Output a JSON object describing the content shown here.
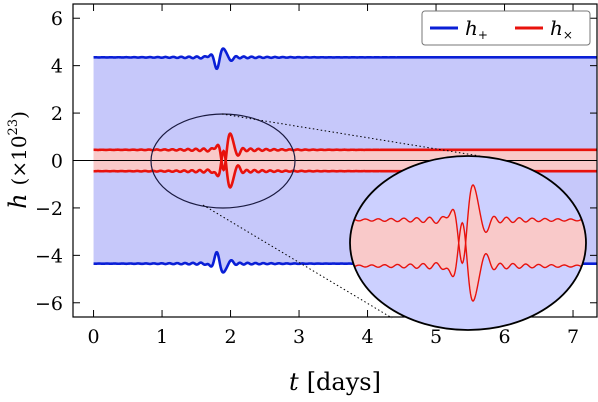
{
  "chart_data": {
    "type": "line",
    "title": "",
    "xlabel": {
      "symbol": "t",
      "unit": "[days]"
    },
    "ylabel": {
      "symbol": "h",
      "scale": "(×10",
      "exp": "23",
      "close": ")"
    },
    "xlim": [
      -0.3,
      7.35
    ],
    "ylim": [
      -6.6,
      6.6
    ],
    "x_ticks": [
      0,
      1,
      2,
      3,
      4,
      5,
      6,
      7
    ],
    "y_ticks": [
      -6,
      -4,
      -2,
      0,
      2,
      4,
      6
    ],
    "grid": false,
    "legend_position": "top-right",
    "colors": {
      "h_plus": "#0a1fd6",
      "h_cross": "#e8120c",
      "plus_fill": "#c6c8fa",
      "cross_fill": "#f9c9c9",
      "inset_fill": "#ccd0ff"
    },
    "series": [
      {
        "name": "h",
        "subscript": "+",
        "key": "h_plus",
        "baseline": 4.35,
        "burst_center_day": 1.85,
        "burst_amplitude": 0.5,
        "ripple_amplitude": 0.07,
        "x_range": [
          0,
          7.35
        ]
      },
      {
        "name": "h",
        "subscript": "×",
        "key": "h_cross",
        "baseline": 0.45,
        "burst_center_day": 1.95,
        "burst_amplitude": 0.9,
        "ripple_amplitude": 0.1,
        "x_range": [
          0,
          7.35
        ]
      }
    ],
    "inset": {
      "description_free": true,
      "magnified_region_center": [
        1.95,
        0
      ],
      "source_ellipse_halfwidth_days": 1.05,
      "source_ellipse_halfheight": 1.7
    }
  }
}
